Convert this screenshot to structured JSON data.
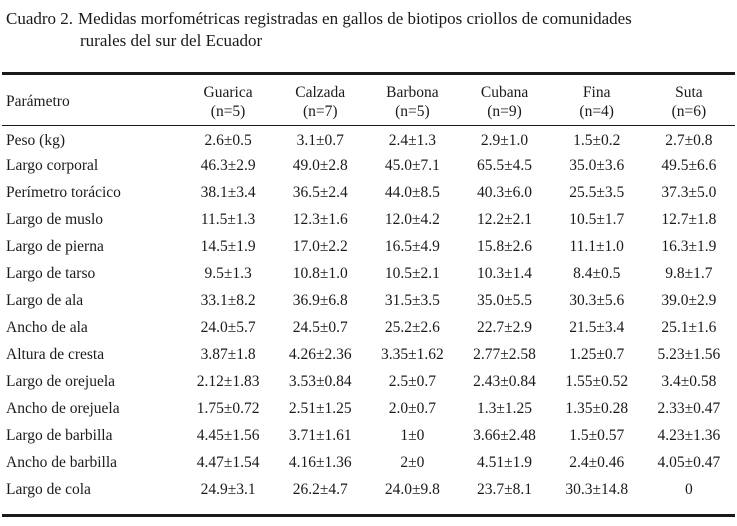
{
  "caption": {
    "number": "Cuadro 2.",
    "line1": "Medidas morfométricas registradas en gallos de biotipos criollos de comunidades",
    "line2": "rurales del sur del Ecuador"
  },
  "table": {
    "param_header": "Parámetro",
    "columns": [
      {
        "name": "Guarica",
        "n": "(n=5)"
      },
      {
        "name": "Calzada",
        "n": "(n=7)"
      },
      {
        "name": "Barbona",
        "n": "(n=5)"
      },
      {
        "name": "Cubana",
        "n": "(n=9)"
      },
      {
        "name": "Fina",
        "n": "(n=4)"
      },
      {
        "name": "Suta",
        "n": "(n=6)"
      }
    ],
    "rows": [
      {
        "param": "Peso (kg)",
        "values": [
          "2.6±0.5",
          "3.1±0.7",
          "2.4±1.3",
          "2.9±1.0",
          "1.5±0.2",
          "2.7±0.8"
        ]
      },
      {
        "param": "Largo corporal",
        "values": [
          "46.3±2.9",
          "49.0±2.8",
          "45.0±7.1",
          "65.5±4.5",
          "35.0±3.6",
          "49.5±6.6"
        ]
      },
      {
        "param": "Perímetro torácico",
        "values": [
          "38.1±3.4",
          "36.5±2.4",
          "44.0±8.5",
          "40.3±6.0",
          "25.5±3.5",
          "37.3±5.0"
        ]
      },
      {
        "param": "Largo de muslo",
        "values": [
          "11.5±1.3",
          "12.3±1.6",
          "12.0±4.2",
          "12.2±2.1",
          "10.5±1.7",
          "12.7±1.8"
        ]
      },
      {
        "param": "Largo de pierna",
        "values": [
          "14.5±1.9",
          "17.0±2.2",
          "16.5±4.9",
          "15.8±2.6",
          "11.1±1.0",
          "16.3±1.9"
        ]
      },
      {
        "param": "Largo de tarso",
        "values": [
          "9.5±1.3",
          "10.8±1.0",
          "10.5±2.1",
          "10.3±1.4",
          "8.4±0.5",
          "9.8±1.7"
        ]
      },
      {
        "param": "Largo de ala",
        "values": [
          "33.1±8.2",
          "36.9±6.8",
          "31.5±3.5",
          "35.0±5.5",
          "30.3±5.6",
          "39.0±2.9"
        ]
      },
      {
        "param": "Ancho de ala",
        "values": [
          "24.0±5.7",
          "24.5±0.7",
          "25.2±2.6",
          "22.7±2.9",
          "21.5±3.4",
          "25.1±1.6"
        ]
      },
      {
        "param": "Altura de cresta",
        "values": [
          "3.87±1.8",
          "4.26±2.36",
          "3.35±1.62",
          "2.77±2.58",
          "1.25±0.7",
          "5.23±1.56"
        ]
      },
      {
        "param": "Largo de orejuela",
        "values": [
          "2.12±1.83",
          "3.53±0.84",
          "2.5±0.7",
          "2.43±0.84",
          "1.55±0.52",
          "3.4±0.58"
        ]
      },
      {
        "param": "Ancho de orejuela",
        "values": [
          "1.75±0.72",
          "2.51±1.25",
          "2.0±0.7",
          "1.3±1.25",
          "1.35±0.28",
          "2.33±0.47"
        ]
      },
      {
        "param": "Largo de barbilla",
        "values": [
          "4.45±1.56",
          "3.71±1.61",
          "1±0",
          "3.66±2.48",
          "1.5±0.57",
          "4.23±1.36"
        ]
      },
      {
        "param": "Ancho de barbilla",
        "values": [
          "4.47±1.54",
          "4.16±1.36",
          "2±0",
          "4.51±1.9",
          "2.4±0.46",
          "4.05±0.47"
        ]
      },
      {
        "param": "Largo de cola",
        "values": [
          "24.9±3.1",
          "26.2±4.7",
          "24.0±9.8",
          "23.7±8.1",
          "30.3±14.8",
          "0"
        ]
      }
    ]
  }
}
